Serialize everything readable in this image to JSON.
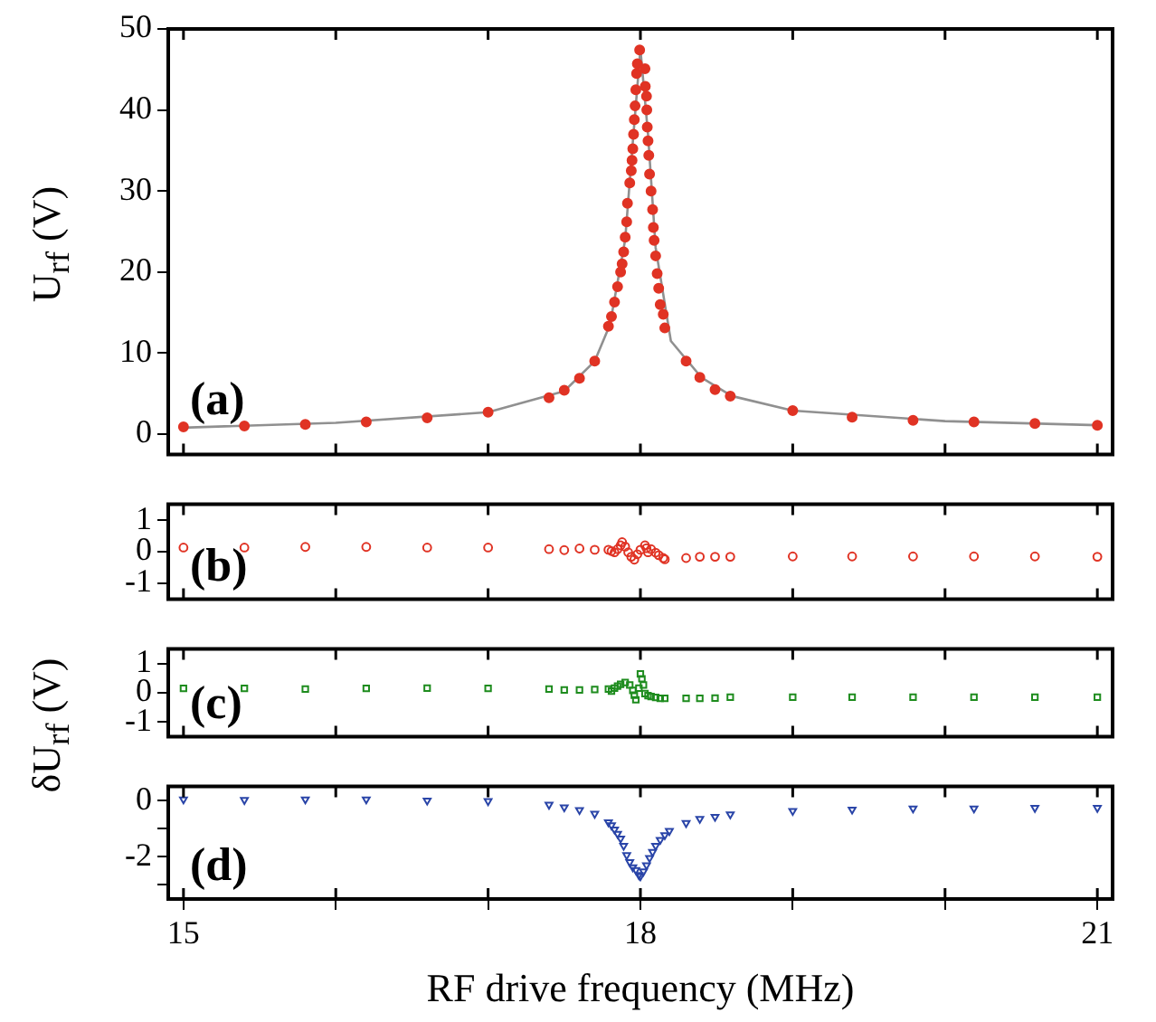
{
  "chart_data": [
    {
      "type": "scatter",
      "ylabel": "U$_{rf}$  (V)",
      "annotations": [
        "(a)"
      ],
      "xlim": [
        14.9,
        21.1
      ],
      "xticks": [
        15,
        {
          "value": 16,
          "label": null
        },
        {
          "value": 17,
          "label": null
        },
        18,
        {
          "value": 19,
          "label": null
        },
        {
          "value": 20,
          "label": null
        },
        21
      ],
      "ylim": [
        -2.5,
        50
      ],
      "yticks": [
        0,
        10,
        20,
        30,
        40,
        50
      ],
      "tick_labels": "y",
      "series": [
        {
          "type": "line",
          "color": "#909090",
          "marker": "none",
          "x": [
            15,
            16,
            17,
            17.5,
            17.7,
            17.8,
            17.9,
            17.95,
            18.0,
            18.05,
            18.1,
            18.2,
            18.4,
            18.6,
            19,
            20,
            21
          ],
          "values": [
            0.8,
            1.4,
            2.7,
            5.3,
            9,
            13.5,
            24,
            36,
            47.5,
            37,
            23,
            11.5,
            7.0,
            4.7,
            2.9,
            1.6,
            1.1
          ]
        },
        {
          "type": "scatter",
          "color": "#e03324",
          "marker": "circle",
          "x": [
            15.0,
            15.4,
            15.8,
            16.2,
            16.6,
            17.0,
            17.4,
            17.5,
            17.6,
            17.7,
            17.79,
            17.81,
            17.83,
            17.85,
            17.87,
            17.88,
            17.89,
            17.9,
            17.91,
            17.915,
            17.93,
            17.94,
            17.945,
            17.95,
            17.955,
            17.96,
            17.965,
            17.97,
            17.975,
            17.98,
            17.995,
            18.03,
            18.032,
            18.04,
            18.042,
            18.045,
            18.05,
            18.055,
            18.06,
            18.07,
            18.08,
            18.085,
            18.09,
            18.1,
            18.11,
            18.12,
            18.13,
            18.15,
            18.16,
            18.3,
            18.39,
            18.49,
            18.59,
            19.0,
            19.39,
            19.79,
            20.19,
            20.59,
            21.0
          ],
          "values": [
            0.9,
            1.0,
            1.2,
            1.5,
            2.0,
            2.7,
            4.5,
            5.4,
            6.9,
            9.0,
            13.3,
            14.5,
            16.3,
            18.2,
            20.0,
            21.0,
            22.5,
            24.3,
            26.2,
            28.5,
            31.0,
            32.5,
            33.8,
            35.2,
            37.0,
            38.8,
            40.5,
            42.5,
            44.5,
            45.7,
            47.4,
            45.1,
            42.9,
            41.7,
            40.0,
            37.9,
            36.2,
            34.4,
            32.1,
            30.0,
            27.7,
            25.5,
            23.9,
            22.0,
            19.8,
            18.0,
            16.0,
            14.8,
            13.1,
            9.0,
            7.0,
            5.5,
            4.7,
            2.9,
            2.1,
            1.7,
            1.5,
            1.3,
            1.1
          ]
        }
      ]
    },
    {
      "type": "scatter",
      "annotations": [
        "(b)"
      ],
      "xlim": [
        14.9,
        21.1
      ],
      "xticks": [
        15,
        {
          "value": 16,
          "label": null
        },
        {
          "value": 17,
          "label": null
        },
        18,
        {
          "value": 19,
          "label": null
        },
        {
          "value": 20,
          "label": null
        },
        21
      ],
      "ylim": [
        -1.5,
        1.5
      ],
      "yticks": [
        -1,
        0,
        1
      ],
      "tick_labels": "y",
      "series": [
        {
          "type": "scatter",
          "color": "#e03324",
          "marker": "circle",
          "x": [
            15.0,
            15.4,
            15.8,
            16.2,
            16.6,
            17.0,
            17.4,
            17.5,
            17.6,
            17.7,
            17.79,
            17.81,
            17.83,
            17.85,
            17.87,
            17.88,
            17.9,
            17.92,
            17.94,
            17.96,
            17.98,
            18.0,
            18.03,
            18.04,
            18.05,
            18.07,
            18.1,
            18.12,
            18.15,
            18.16,
            18.3,
            18.39,
            18.49,
            18.59,
            19.0,
            19.39,
            19.79,
            20.19,
            20.59,
            21.0
          ],
          "values": [
            0.13,
            0.13,
            0.15,
            0.15,
            0.13,
            0.13,
            0.08,
            0.05,
            0.1,
            0.06,
            0.06,
            0.02,
            -0.02,
            0.08,
            0.2,
            0.3,
            0.16,
            -0.02,
            -0.16,
            -0.25,
            -0.08,
            0.06,
            0.2,
            0.11,
            -0.02,
            0.08,
            -0.03,
            -0.11,
            -0.2,
            -0.24,
            -0.2,
            -0.16,
            -0.16,
            -0.16,
            -0.15,
            -0.15,
            -0.15,
            -0.15,
            -0.15,
            -0.16
          ]
        }
      ]
    },
    {
      "type": "scatter",
      "ylabel": "δU$_{rf}$  (V)",
      "annotations": [
        "(c)"
      ],
      "xlim": [
        14.9,
        21.1
      ],
      "xticks": [
        15,
        {
          "value": 16,
          "label": null
        },
        {
          "value": 17,
          "label": null
        },
        18,
        {
          "value": 19,
          "label": null
        },
        {
          "value": 20,
          "label": null
        },
        21
      ],
      "ylim": [
        -1.5,
        1.5
      ],
      "yticks": [
        -1,
        0,
        1
      ],
      "tick_labels": "y",
      "series": [
        {
          "type": "scatter",
          "color": "#1e8c1e",
          "marker": "square",
          "x": [
            15.0,
            15.4,
            15.8,
            16.2,
            16.6,
            17.0,
            17.4,
            17.5,
            17.6,
            17.7,
            17.79,
            17.81,
            17.83,
            17.85,
            17.87,
            17.9,
            17.93,
            17.95,
            17.96,
            17.97,
            17.99,
            18.0,
            18.01,
            18.02,
            18.03,
            18.05,
            18.07,
            18.1,
            18.13,
            18.16,
            18.3,
            18.39,
            18.49,
            18.59,
            19.0,
            19.39,
            19.79,
            20.19,
            20.59,
            21.0
          ],
          "values": [
            0.15,
            0.15,
            0.13,
            0.15,
            0.16,
            0.15,
            0.13,
            0.1,
            0.1,
            0.11,
            0.13,
            0.06,
            0.16,
            0.23,
            0.29,
            0.35,
            0.27,
            0.08,
            -0.08,
            -0.24,
            0.16,
            0.65,
            0.48,
            0.27,
            -0.03,
            -0.1,
            -0.13,
            -0.16,
            -0.19,
            -0.19,
            -0.19,
            -0.19,
            -0.18,
            -0.15,
            -0.15,
            -0.15,
            -0.15,
            -0.15,
            -0.15,
            -0.15
          ]
        }
      ]
    },
    {
      "type": "scatter",
      "xlabel": "RF drive frequency (MHz)",
      "annotations": [
        "(d)"
      ],
      "xlim": [
        14.9,
        21.1
      ],
      "xticks": [
        15,
        {
          "value": 16,
          "label": null
        },
        {
          "value": 17,
          "label": null
        },
        18,
        {
          "value": 19,
          "label": null
        },
        {
          "value": 20,
          "label": null
        },
        21
      ],
      "ylim": [
        -3.5,
        0.5
      ],
      "yticks": [
        {
          "value": -3,
          "label": null
        },
        -2,
        {
          "value": -1,
          "label": null
        },
        0
      ],
      "series": [
        {
          "type": "scatter",
          "color": "#2a45a8",
          "marker": "triangle",
          "x": [
            15.0,
            15.4,
            15.8,
            16.2,
            16.6,
            17.0,
            17.4,
            17.5,
            17.6,
            17.7,
            17.79,
            17.81,
            17.83,
            17.85,
            17.87,
            17.89,
            17.91,
            17.93,
            17.95,
            17.97,
            17.99,
            18.0,
            18.02,
            18.04,
            18.06,
            18.08,
            18.1,
            18.13,
            18.16,
            18.19,
            18.3,
            18.39,
            18.49,
            18.59,
            19.0,
            19.39,
            19.79,
            20.19,
            20.59,
            21.0
          ],
          "values": [
            0.04,
            0.02,
            0.04,
            0.04,
            0,
            -0.02,
            -0.15,
            -0.24,
            -0.34,
            -0.47,
            -0.77,
            -0.88,
            -1.03,
            -1.18,
            -1.35,
            -1.61,
            -1.94,
            -2.19,
            -2.37,
            -2.47,
            -2.65,
            -2.69,
            -2.52,
            -2.3,
            -2.04,
            -1.83,
            -1.61,
            -1.4,
            -1.23,
            -1.08,
            -0.8,
            -0.65,
            -0.58,
            -0.49,
            -0.37,
            -0.32,
            -0.28,
            -0.28,
            -0.26,
            -0.26
          ]
        }
      ]
    }
  ]
}
